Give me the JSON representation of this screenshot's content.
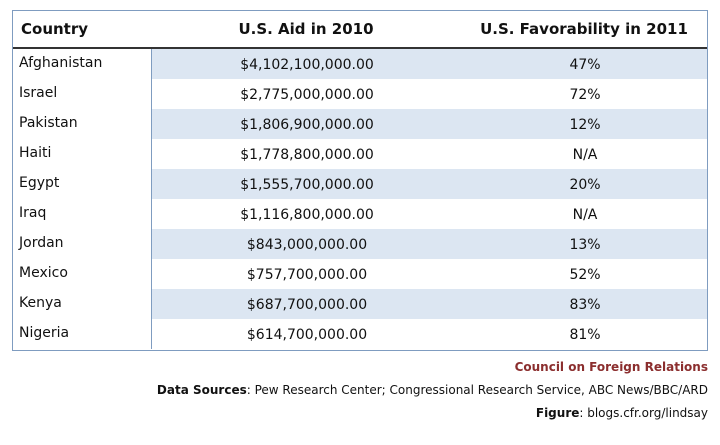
{
  "table": {
    "headers": {
      "country": "Country",
      "aid": "U.S. Aid in 2010",
      "favorability": "U.S. Favorability in 2011"
    },
    "rows": [
      {
        "country": "Afghanistan",
        "aid": "$4,102,100,000.00",
        "favorability": "47%"
      },
      {
        "country": "Israel",
        "aid": "$2,775,000,000.00",
        "favorability": "72%"
      },
      {
        "country": "Pakistan",
        "aid": "$1,806,900,000.00",
        "favorability": "12%"
      },
      {
        "country": "Haiti",
        "aid": "$1,778,800,000.00",
        "favorability": "N/A"
      },
      {
        "country": "Egypt",
        "aid": "$1,555,700,000.00",
        "favorability": "20%"
      },
      {
        "country": "Iraq",
        "aid": "$1,116,800,000.00",
        "favorability": "N/A"
      },
      {
        "country": "Jordan",
        "aid": "$843,000,000.00",
        "favorability": "13%"
      },
      {
        "country": "Mexico",
        "aid": "$757,700,000.00",
        "favorability": "52%"
      },
      {
        "country": "Kenya",
        "aid": "$687,700,000.00",
        "favorability": "83%"
      },
      {
        "country": "Nigeria",
        "aid": "$614,700,000.00",
        "favorability": "81%"
      }
    ]
  },
  "footer": {
    "organization": "Council on Foreign Relations",
    "sources_label": "Data Sources",
    "sources_text": ": Pew Research Center; Congressional Research Service, ABC News/BBC/ARD",
    "figure_label": "Figure",
    "figure_text": ": blogs.cfr.org/lindsay"
  },
  "colors": {
    "band_shade": "#dce6f2",
    "border": "#7f9cc0",
    "organization_text": "#8b2e2e"
  }
}
